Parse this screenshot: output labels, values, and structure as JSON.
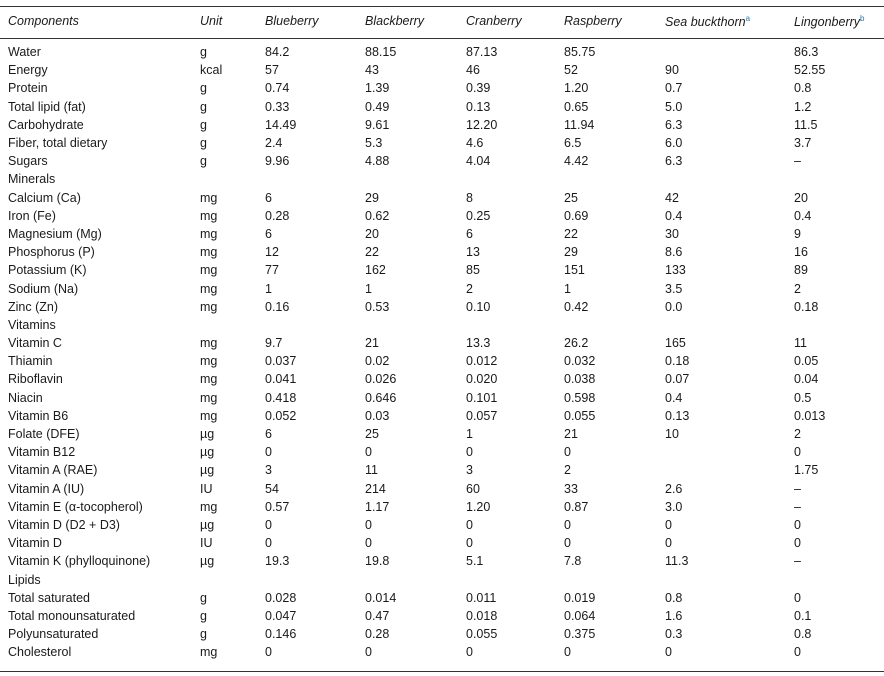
{
  "headers": [
    {
      "label": "Components",
      "sup": ""
    },
    {
      "label": "Unit",
      "sup": ""
    },
    {
      "label": "Blueberry",
      "sup": ""
    },
    {
      "label": "Blackberry",
      "sup": ""
    },
    {
      "label": "Cranberry",
      "sup": ""
    },
    {
      "label": "Raspberry",
      "sup": ""
    },
    {
      "label": "Sea buckthorn",
      "sup": "a"
    },
    {
      "label": "Lingonberry",
      "sup": "b"
    }
  ],
  "rows": [
    [
      "Water",
      "g",
      "84.2",
      "88.15",
      "87.13",
      "85.75",
      "",
      "86.3"
    ],
    [
      "Energy",
      "kcal",
      "57",
      "43",
      "46",
      "52",
      "90",
      "52.55"
    ],
    [
      "Protein",
      "g",
      "0.74",
      "1.39",
      "0.39",
      "1.20",
      "0.7",
      "0.8"
    ],
    [
      "Total lipid (fat)",
      "g",
      "0.33",
      "0.49",
      "0.13",
      "0.65",
      "5.0",
      "1.2"
    ],
    [
      "Carbohydrate",
      "g",
      "14.49",
      "9.61",
      "12.20",
      "11.94",
      "6.3",
      "11.5"
    ],
    [
      "Fiber, total dietary",
      "g",
      "2.4",
      "5.3",
      "4.6",
      "6.5",
      "6.0",
      "3.7"
    ],
    [
      "Sugars",
      "g",
      "9.96",
      "4.88",
      "4.04",
      "4.42",
      "6.3",
      "–"
    ],
    [
      "Minerals",
      "",
      "",
      "",
      "",
      "",
      "",
      ""
    ],
    [
      "Calcium (Ca)",
      "mg",
      "6",
      "29",
      "8",
      "25",
      "42",
      "20"
    ],
    [
      "Iron (Fe)",
      "mg",
      "0.28",
      "0.62",
      "0.25",
      "0.69",
      "0.4",
      "0.4"
    ],
    [
      "Magnesium (Mg)",
      "mg",
      "6",
      "20",
      "6",
      "22",
      "30",
      "9"
    ],
    [
      "Phosphorus (P)",
      "mg",
      "12",
      "22",
      "13",
      "29",
      "8.6",
      "16"
    ],
    [
      "Potassium (K)",
      "mg",
      "77",
      "162",
      "85",
      "151",
      "133",
      "89"
    ],
    [
      "Sodium (Na)",
      "mg",
      "1",
      "1",
      "2",
      "1",
      "3.5",
      "2"
    ],
    [
      "Zinc (Zn)",
      "mg",
      "0.16",
      "0.53",
      "0.10",
      "0.42",
      "0.0",
      "0.18"
    ],
    [
      "Vitamins",
      "",
      "",
      "",
      "",
      "",
      "",
      ""
    ],
    [
      "Vitamin C",
      "mg",
      "9.7",
      "21",
      "13.3",
      "26.2",
      "165",
      "11"
    ],
    [
      "Thiamin",
      "mg",
      "0.037",
      "0.02",
      "0.012",
      "0.032",
      "0.18",
      "0.05"
    ],
    [
      "Riboflavin",
      "mg",
      "0.041",
      "0.026",
      "0.020",
      "0.038",
      "0.07",
      "0.04"
    ],
    [
      "Niacin",
      "mg",
      "0.418",
      "0.646",
      "0.101",
      "0.598",
      "0.4",
      "0.5"
    ],
    [
      "Vitamin B6",
      "mg",
      "0.052",
      "0.03",
      "0.057",
      "0.055",
      "0.13",
      "0.013"
    ],
    [
      "Folate (DFE)",
      "µg",
      "6",
      "25",
      "1",
      "21",
      "10",
      "2"
    ],
    [
      "Vitamin B12",
      "µg",
      "0",
      "0",
      "0",
      "0",
      "",
      "0"
    ],
    [
      "Vitamin A (RAE)",
      "µg",
      "3",
      "11",
      "3",
      "2",
      "",
      "1.75"
    ],
    [
      "Vitamin A (IU)",
      "IU",
      "54",
      "214",
      "60",
      "33",
      "2.6",
      "–"
    ],
    [
      "Vitamin E (α-tocopherol)",
      "mg",
      "0.57",
      "1.17",
      "1.20",
      "0.87",
      "3.0",
      "–"
    ],
    [
      "Vitamin D (D2 + D3)",
      "µg",
      "0",
      "0",
      "0",
      "0",
      "0",
      "0"
    ],
    [
      "Vitamin D",
      "IU",
      "0",
      "0",
      "0",
      "0",
      "0",
      "0"
    ],
    [
      "Vitamin K (phylloquinone)",
      "µg",
      "19.3",
      "19.8",
      "5.1",
      "7.8",
      "11.3",
      "–"
    ],
    [
      "Lipids",
      "",
      "",
      "",
      "",
      "",
      "",
      ""
    ],
    [
      "Total saturated",
      "g",
      "0.028",
      "0.014",
      "0.011",
      "0.019",
      "0.8",
      "0"
    ],
    [
      "Total monounsaturated",
      "g",
      "0.047",
      "0.47",
      "0.018",
      "0.064",
      "1.6",
      "0.1"
    ],
    [
      "Polyunsaturated",
      "g",
      "0.146",
      "0.28",
      "0.055",
      "0.375",
      "0.3",
      "0.8"
    ],
    [
      "Cholesterol",
      "mg",
      "0",
      "0",
      "0",
      "0",
      "0",
      "0"
    ]
  ]
}
